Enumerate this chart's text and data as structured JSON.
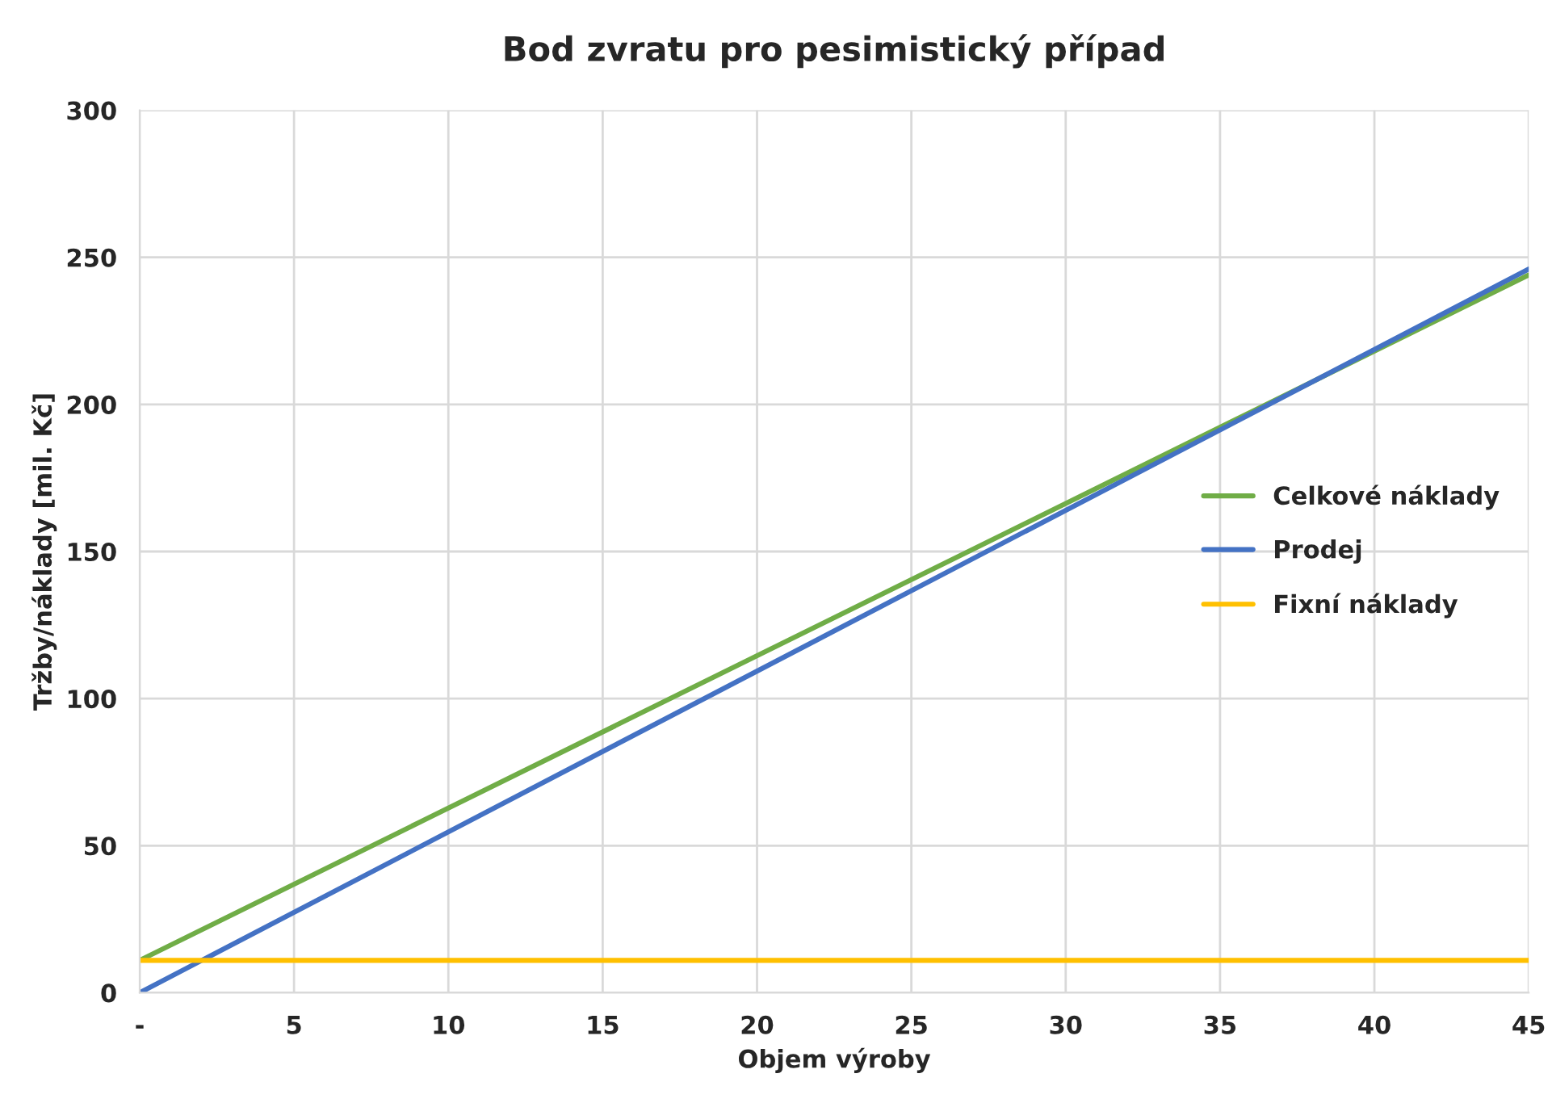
{
  "chart_data": {
    "type": "line",
    "title": "Bod zvratu pro pesimistický případ",
    "xlabel": "Objem výroby",
    "ylabel": "Tržby/náklady [mil. Kč]",
    "x": [
      0,
      45
    ],
    "series": [
      {
        "name": "Celkové náklady",
        "color": "#70ad47",
        "values": [
          11,
          244
        ]
      },
      {
        "name": "Prodej",
        "color": "#4472c4",
        "values": [
          0,
          246
        ]
      },
      {
        "name": "Fixní náklady",
        "color": "#ffc000",
        "values": [
          11,
          11
        ]
      }
    ],
    "xlim": [
      0,
      45
    ],
    "xticks": [
      {
        "value": 0,
        "label": "-"
      },
      5,
      10,
      15,
      20,
      25,
      30,
      35,
      40,
      45
    ],
    "ylim": [
      0,
      300
    ],
    "yticks": [
      0,
      50,
      100,
      150,
      200,
      250,
      300
    ],
    "grid": true,
    "legend": "right",
    "marker": "none",
    "line_style": "solid"
  }
}
